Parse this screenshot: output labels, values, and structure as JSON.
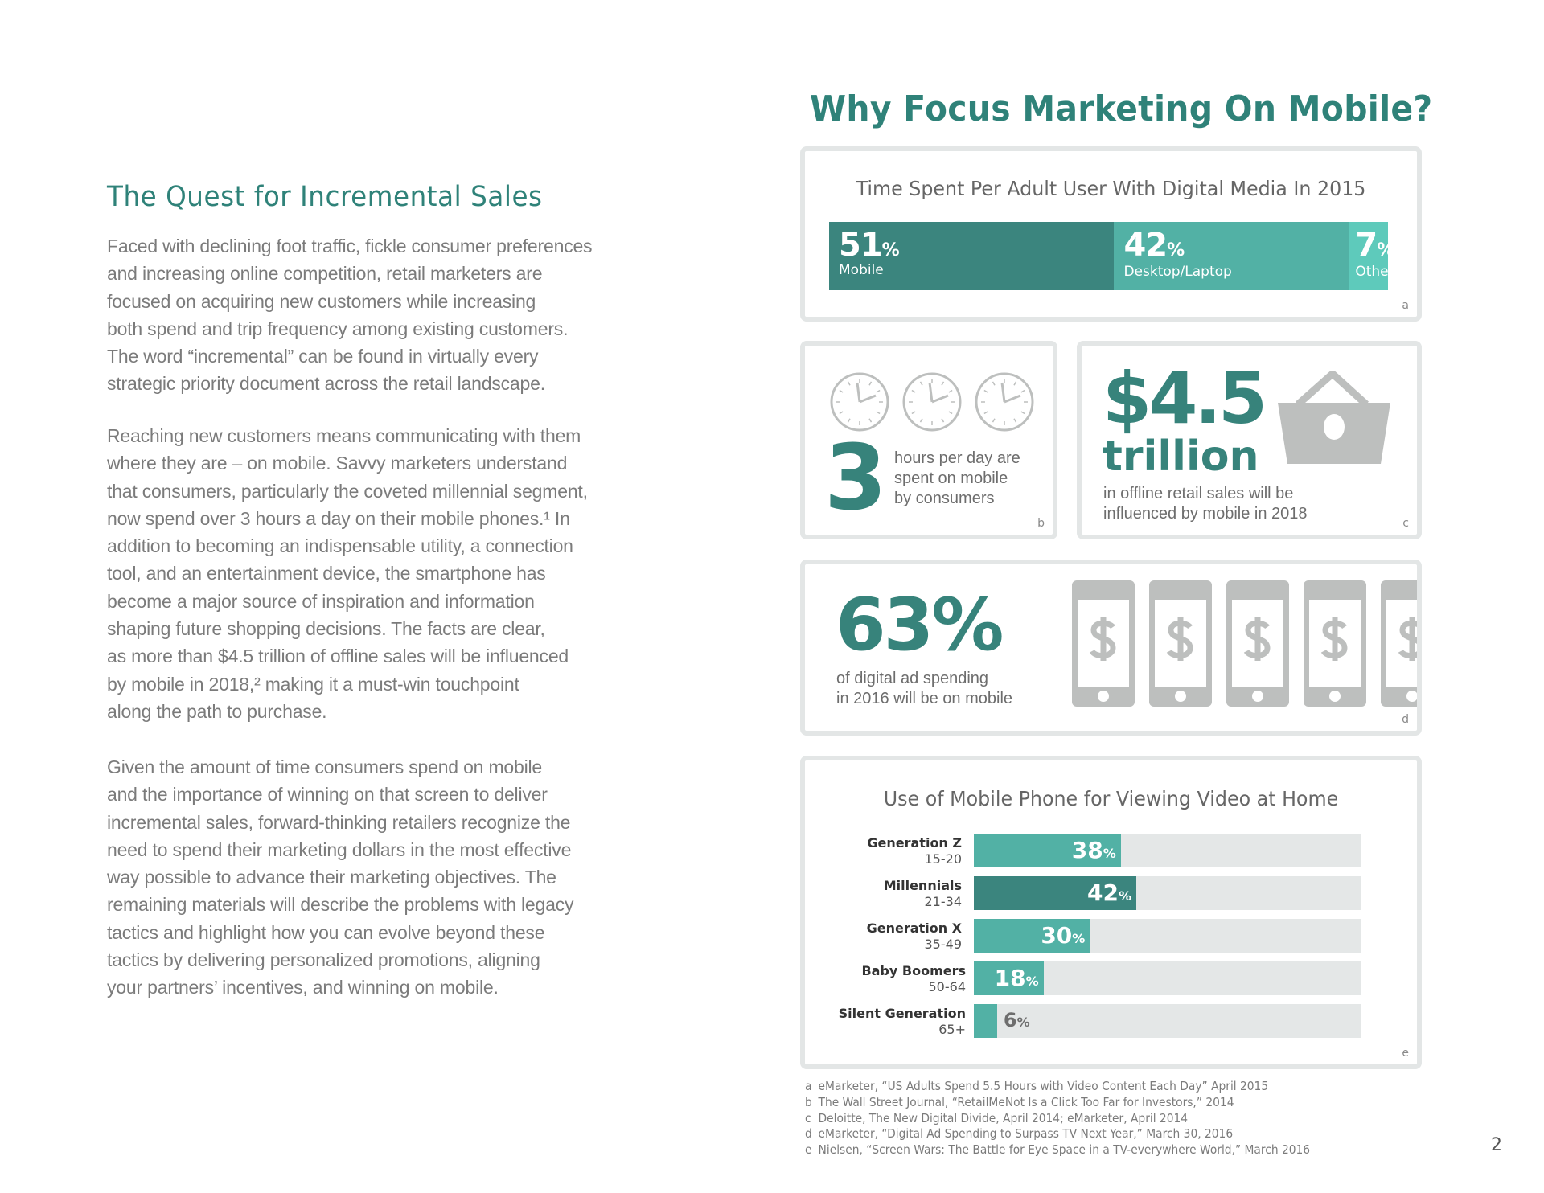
{
  "left": {
    "heading": "The Quest for Incremental Sales",
    "paragraphs": [
      [
        "Faced with declining foot traffic, fickle consumer preferences",
        "and increasing online competition, retail marketers are",
        "focused on acquiring new customers while increasing",
        "both spend and trip frequency among existing customers.",
        "The word “incremental” can be found in virtually every",
        "strategic priority document across the retail landscape."
      ],
      [
        "Reaching new customers means communicating with them",
        "where they are – on mobile. Savvy marketers understand",
        "that consumers, particularly the coveted millennial segment,",
        "now spend over 3 hours a day on their mobile phones.¹ In",
        "addition to becoming an indispensable utility, a connection",
        "tool, and an entertainment device, the smartphone has",
        "become a major source of inspiration and information",
        "shaping future shopping decisions. The facts are clear,",
        "as more than $4.5 trillion of offline sales will be influenced",
        "by mobile in 2018,² making it a must-win touchpoint",
        "along the path to purchase."
      ],
      [
        "Given the amount of time consumers spend on mobile",
        "and the importance of winning on that screen to deliver",
        "incremental sales, forward-thinking retailers recognize the",
        "need to spend their marketing dollars in the most effective",
        "way possible to advance their marketing objectives. The",
        "remaining materials will describe the problems with legacy",
        "tactics and highlight how you can evolve beyond these",
        "tactics by delivering personalized promotions, aligning",
        "your partners’ incentives, and winning on mobile."
      ]
    ]
  },
  "right": {
    "title": "Why Focus Marketing On Mobile?",
    "time_card": {
      "title": "Time Spent Per Adult User With Digital Media In 2015",
      "source": "a"
    },
    "hours_card": {
      "number": "3",
      "text": [
        "hours per day are",
        "spent on mobile",
        "by consumers"
      ],
      "source": "b",
      "clock_icon_count": 3
    },
    "sales_card": {
      "amount": "$4.5",
      "unit": "trillion",
      "text": [
        "in offline retail sales will be",
        "influenced by mobile in 2018"
      ],
      "source": "c",
      "icon": "shopping-basket-icon"
    },
    "ad_card": {
      "number": "63%",
      "text": [
        "of digital ad spending",
        "in 2016 will be on mobile"
      ],
      "source": "d",
      "icon": "mobile-dollar-icon"
    },
    "video_card": {
      "title": "Use of Mobile Phone for Viewing Video at Home",
      "source": "e"
    }
  },
  "colors": {
    "dark_teal": "#3b857e",
    "teal": "#52b1a5",
    "light_teal": "#5ecabb",
    "heading": "#2f8279",
    "track": "#e4e7e7",
    "icon_gray": "#bdbfbe"
  },
  "chart_data": [
    {
      "type": "bar",
      "stacked": true,
      "title": "Time Spent Per Adult User With Digital Media In 2015",
      "categories": [
        "Mobile",
        "Desktop/Laptop",
        "Other"
      ],
      "values": [
        51,
        42,
        7
      ],
      "unit": "%"
    },
    {
      "type": "bar",
      "orientation": "horizontal",
      "title": "Use of Mobile Phone for Viewing Video at Home",
      "categories": [
        "Generation Z",
        "Millennials",
        "Generation X",
        "Baby Boomers",
        "Silent Generation"
      ],
      "sublabels": [
        "15-20",
        "21-34",
        "35-49",
        "50-64",
        "65+"
      ],
      "values": [
        38,
        42,
        30,
        18,
        6
      ],
      "unit": "%",
      "xlim": [
        0,
        100
      ],
      "highlight": "Millennials"
    }
  ],
  "footnotes": [
    {
      "letter": "a",
      "text": "eMarketer, “US Adults Spend 5.5 Hours with Video Content Each Day” April 2015"
    },
    {
      "letter": "b",
      "text": "The Wall Street Journal, “RetailMeNot Is a Click Too Far for Investors,” 2014"
    },
    {
      "letter": "c",
      "text": "Deloitte, The New Digital Divide, April 2014; eMarketer, April 2014"
    },
    {
      "letter": "d",
      "text": "eMarketer, “Digital Ad Spending to Surpass TV Next Year,” March 30, 2016"
    },
    {
      "letter": "e",
      "text": "Nielsen, “Screen Wars: The Battle for Eye Space in a TV-everywhere World,” March 2016"
    }
  ],
  "page_number": "2"
}
